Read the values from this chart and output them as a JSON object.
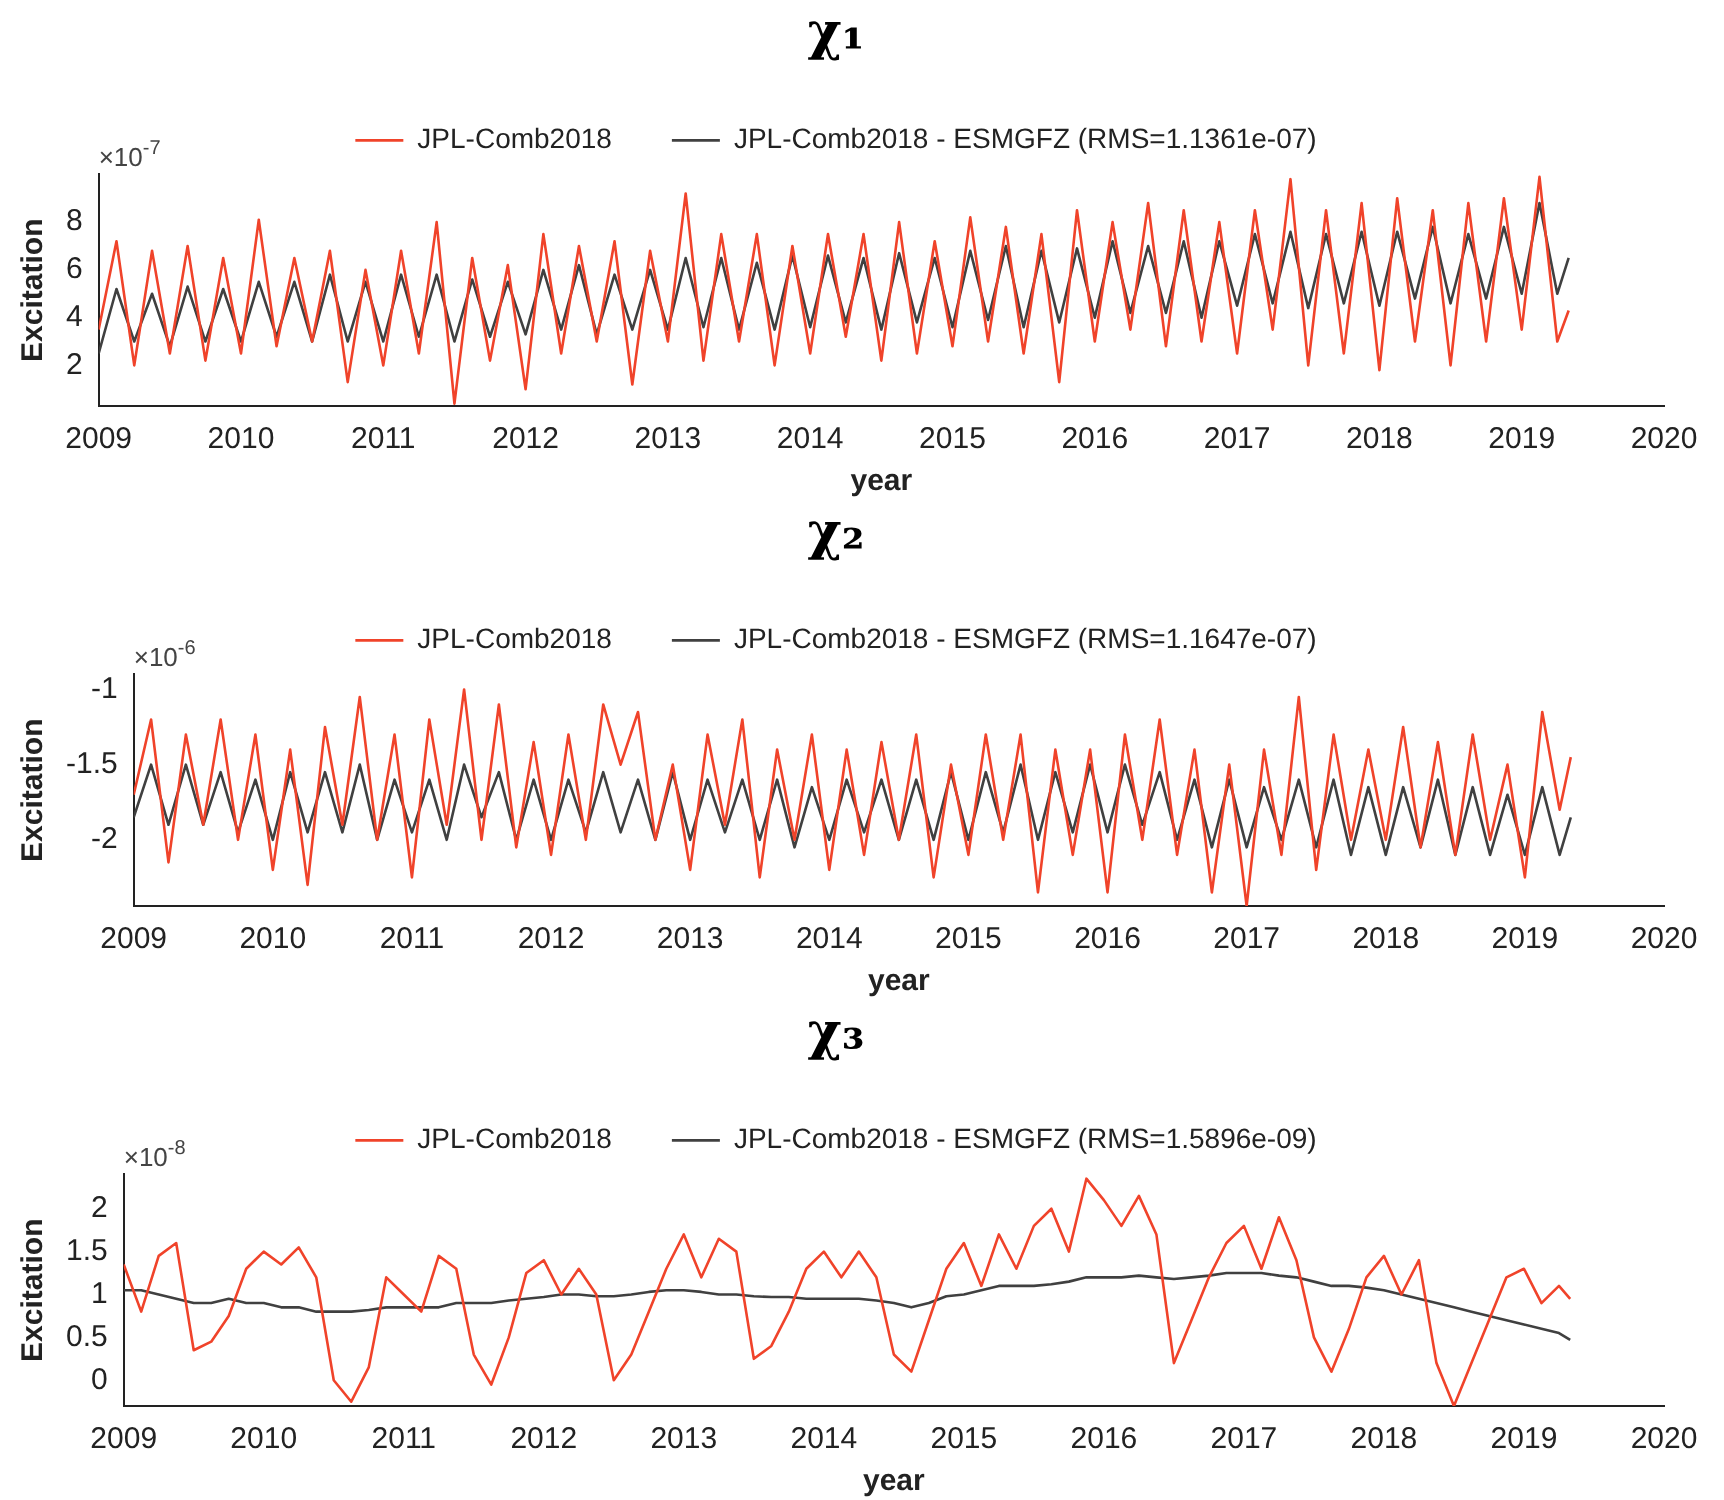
{
  "chart_data": [
    {
      "type": "line",
      "title": "χ₁",
      "xlabel": "year",
      "ylabel": "Excitation",
      "annotations": [
        "×10$^{-7}$"
      ],
      "legend": "top",
      "xlim": [
        2009,
        2020
      ],
      "xticks": [
        2009,
        2010,
        2011,
        2012,
        2013,
        2014,
        2015,
        2016,
        2017,
        2018,
        2019,
        2020
      ],
      "ylim": [
        0.3,
        10
      ],
      "yticks": [
        2,
        4,
        6,
        8
      ],
      "x": [
        2009,
        2009.125,
        2009.25,
        2009.375,
        2009.5,
        2009.625,
        2009.75,
        2009.875,
        2010,
        2010.125,
        2010.25,
        2010.375,
        2010.5,
        2010.625,
        2010.75,
        2010.875,
        2011,
        2011.125,
        2011.25,
        2011.375,
        2011.5,
        2011.625,
        2011.75,
        2011.875,
        2012,
        2012.125,
        2012.25,
        2012.375,
        2012.5,
        2012.625,
        2012.75,
        2012.875,
        2013,
        2013.125,
        2013.25,
        2013.375,
        2013.5,
        2013.625,
        2013.75,
        2013.875,
        2014,
        2014.125,
        2014.25,
        2014.375,
        2014.5,
        2014.625,
        2014.75,
        2014.875,
        2015,
        2015.125,
        2015.25,
        2015.375,
        2015.5,
        2015.625,
        2015.75,
        2015.875,
        2016,
        2016.125,
        2016.25,
        2016.375,
        2016.5,
        2016.625,
        2016.75,
        2016.875,
        2017,
        2017.125,
        2017.25,
        2017.375,
        2017.5,
        2017.625,
        2017.75,
        2017.875,
        2018,
        2018.125,
        2018.25,
        2018.375,
        2018.5,
        2018.625,
        2018.75,
        2018.875,
        2019,
        2019.125,
        2019.25,
        2019.33
      ],
      "series": [
        {
          "name": "JPL-Comb2018",
          "color": "#f0432a",
          "values": [
            3.5,
            7.2,
            2.0,
            6.8,
            2.5,
            7.0,
            2.2,
            6.5,
            2.5,
            8.1,
            2.8,
            6.5,
            3.0,
            6.8,
            1.3,
            6.0,
            2.0,
            6.8,
            2.5,
            8.0,
            0.4,
            6.5,
            2.2,
            6.2,
            1.0,
            7.5,
            2.5,
            7.0,
            3.0,
            7.2,
            1.2,
            6.8,
            3.0,
            9.2,
            2.2,
            7.5,
            3.0,
            7.5,
            2.0,
            7.0,
            2.5,
            7.5,
            3.2,
            7.5,
            2.2,
            8.0,
            2.5,
            7.2,
            2.8,
            8.2,
            3.0,
            7.8,
            2.5,
            7.5,
            1.3,
            8.5,
            3.0,
            8.0,
            3.5,
            8.8,
            2.8,
            8.5,
            3.0,
            8.0,
            2.5,
            8.5,
            3.5,
            9.8,
            2.0,
            8.5,
            2.5,
            8.8,
            1.8,
            9.0,
            3.0,
            8.5,
            2.0,
            8.8,
            3.0,
            9.0,
            3.5,
            9.9,
            3.0,
            4.3
          ]
        },
        {
          "name": "JPL-Comb2018 - ESMGFZ (RMS=1.1361e-07)",
          "color": "#404040",
          "values": [
            2.5,
            5.2,
            3.0,
            5.0,
            2.8,
            5.3,
            3.0,
            5.2,
            3.0,
            5.5,
            3.2,
            5.5,
            3.0,
            5.8,
            3.0,
            5.5,
            3.0,
            5.8,
            3.2,
            5.8,
            3.0,
            5.6,
            3.2,
            5.5,
            3.3,
            6.0,
            3.5,
            6.2,
            3.3,
            5.8,
            3.5,
            6.0,
            3.5,
            6.5,
            3.6,
            6.5,
            3.5,
            6.3,
            3.5,
            6.6,
            3.6,
            6.6,
            3.8,
            6.5,
            3.5,
            6.7,
            3.8,
            6.5,
            3.6,
            6.8,
            3.9,
            7.0,
            3.6,
            6.8,
            3.8,
            6.9,
            4.0,
            7.2,
            4.2,
            7.0,
            4.2,
            7.2,
            4.0,
            7.2,
            4.5,
            7.5,
            4.6,
            7.6,
            4.4,
            7.5,
            4.6,
            7.6,
            4.5,
            7.6,
            4.8,
            7.8,
            4.6,
            7.5,
            4.8,
            7.8,
            5.0,
            8.8,
            5.0,
            6.5
          ]
        }
      ]
    },
    {
      "type": "line",
      "title": "χ₂",
      "xlabel": "year",
      "ylabel": "Excitation",
      "annotations": [
        "×10$^{-6}$"
      ],
      "legend": "top",
      "xlim": [
        2009,
        2020
      ],
      "xticks": [
        2009,
        2010,
        2011,
        2012,
        2013,
        2014,
        2015,
        2016,
        2017,
        2018,
        2019,
        2020
      ],
      "ylim": [
        -2.44,
        -0.9
      ],
      "yticks": [
        -2,
        -1.5,
        -1
      ],
      "x": [
        2009,
        2009.125,
        2009.25,
        2009.375,
        2009.5,
        2009.625,
        2009.75,
        2009.875,
        2010,
        2010.125,
        2010.25,
        2010.375,
        2010.5,
        2010.625,
        2010.75,
        2010.875,
        2011,
        2011.125,
        2011.25,
        2011.375,
        2011.5,
        2011.625,
        2011.75,
        2011.875,
        2012,
        2012.125,
        2012.25,
        2012.375,
        2012.5,
        2012.625,
        2012.75,
        2012.875,
        2013,
        2013.125,
        2013.25,
        2013.375,
        2013.5,
        2013.625,
        2013.75,
        2013.875,
        2014,
        2014.125,
        2014.25,
        2014.375,
        2014.5,
        2014.625,
        2014.75,
        2014.875,
        2015,
        2015.125,
        2015.25,
        2015.375,
        2015.5,
        2015.625,
        2015.75,
        2015.875,
        2016,
        2016.125,
        2016.25,
        2016.375,
        2016.5,
        2016.625,
        2016.75,
        2016.875,
        2017,
        2017.125,
        2017.25,
        2017.375,
        2017.5,
        2017.625,
        2017.75,
        2017.875,
        2018,
        2018.125,
        2018.25,
        2018.375,
        2018.5,
        2018.625,
        2018.75,
        2018.875,
        2019,
        2019.125,
        2019.25,
        2019.33
      ],
      "series": [
        {
          "name": "JPL-Comb2018",
          "color": "#f0432a",
          "values": [
            -1.7,
            -1.2,
            -2.15,
            -1.3,
            -1.9,
            -1.2,
            -2.0,
            -1.3,
            -2.2,
            -1.4,
            -2.3,
            -1.25,
            -1.9,
            -1.05,
            -2.0,
            -1.3,
            -2.25,
            -1.2,
            -1.9,
            -1.0,
            -2.0,
            -1.1,
            -2.05,
            -1.35,
            -2.1,
            -1.3,
            -2.0,
            -1.1,
            -1.5,
            -1.15,
            -2.0,
            -1.5,
            -2.2,
            -1.3,
            -1.9,
            -1.2,
            -2.25,
            -1.4,
            -2.0,
            -1.3,
            -2.2,
            -1.4,
            -2.1,
            -1.35,
            -2.0,
            -1.3,
            -2.25,
            -1.5,
            -2.1,
            -1.3,
            -2.0,
            -1.3,
            -2.35,
            -1.4,
            -2.1,
            -1.4,
            -2.35,
            -1.3,
            -2.0,
            -1.2,
            -2.1,
            -1.4,
            -2.35,
            -1.5,
            -2.44,
            -1.4,
            -2.1,
            -1.05,
            -2.2,
            -1.3,
            -2.0,
            -1.4,
            -2.0,
            -1.25,
            -2.05,
            -1.35,
            -2.1,
            -1.3,
            -2.0,
            -1.5,
            -2.25,
            -1.15,
            -1.8,
            -1.45
          ]
        },
        {
          "name": "JPL-Comb2018 - ESMGFZ (RMS=1.1647e-07)",
          "color": "#404040",
          "values": [
            -1.85,
            -1.5,
            -1.9,
            -1.5,
            -1.9,
            -1.55,
            -1.95,
            -1.6,
            -2.0,
            -1.55,
            -1.95,
            -1.55,
            -1.95,
            -1.5,
            -2.0,
            -1.6,
            -1.95,
            -1.6,
            -2.0,
            -1.5,
            -1.85,
            -1.55,
            -2.0,
            -1.6,
            -2.0,
            -1.6,
            -1.95,
            -1.55,
            -1.95,
            -1.6,
            -2.0,
            -1.55,
            -2.0,
            -1.6,
            -1.95,
            -1.6,
            -2.0,
            -1.6,
            -2.05,
            -1.65,
            -2.0,
            -1.6,
            -1.95,
            -1.6,
            -2.0,
            -1.6,
            -2.0,
            -1.55,
            -2.0,
            -1.55,
            -1.95,
            -1.5,
            -2.0,
            -1.55,
            -1.95,
            -1.5,
            -1.95,
            -1.5,
            -1.9,
            -1.55,
            -2.0,
            -1.6,
            -2.05,
            -1.6,
            -2.05,
            -1.65,
            -2.0,
            -1.6,
            -2.05,
            -1.6,
            -2.1,
            -1.65,
            -2.1,
            -1.65,
            -2.05,
            -1.6,
            -2.1,
            -1.65,
            -2.1,
            -1.7,
            -2.1,
            -1.65,
            -2.1,
            -1.85
          ]
        }
      ]
    },
    {
      "type": "line",
      "title": "χ₃",
      "xlabel": "year",
      "ylabel": "Excitation",
      "annotations": [
        "×10$^{-8}$"
      ],
      "legend": "top",
      "xlim": [
        2009,
        2020
      ],
      "xticks": [
        2009,
        2010,
        2011,
        2012,
        2013,
        2014,
        2015,
        2016,
        2017,
        2018,
        2019,
        2020
      ],
      "ylim": [
        -0.3,
        2.4
      ],
      "yticks": [
        0,
        0.5,
        1,
        1.5,
        2
      ],
      "x": [
        2009,
        2009.125,
        2009.25,
        2009.375,
        2009.5,
        2009.625,
        2009.75,
        2009.875,
        2010,
        2010.125,
        2010.25,
        2010.375,
        2010.5,
        2010.625,
        2010.75,
        2010.875,
        2011,
        2011.125,
        2011.25,
        2011.375,
        2011.5,
        2011.625,
        2011.75,
        2011.875,
        2012,
        2012.125,
        2012.25,
        2012.375,
        2012.5,
        2012.625,
        2012.75,
        2012.875,
        2013,
        2013.125,
        2013.25,
        2013.375,
        2013.5,
        2013.625,
        2013.75,
        2013.875,
        2014,
        2014.125,
        2014.25,
        2014.375,
        2014.5,
        2014.625,
        2014.75,
        2014.875,
        2015,
        2015.125,
        2015.25,
        2015.375,
        2015.5,
        2015.625,
        2015.75,
        2015.875,
        2016,
        2016.125,
        2016.25,
        2016.375,
        2016.5,
        2016.625,
        2016.75,
        2016.875,
        2017,
        2017.125,
        2017.25,
        2017.375,
        2017.5,
        2017.625,
        2017.75,
        2017.875,
        2018,
        2018.125,
        2018.25,
        2018.375,
        2018.5,
        2018.625,
        2018.75,
        2018.875,
        2019,
        2019.125,
        2019.25,
        2019.33
      ],
      "series": [
        {
          "name": "JPL-Comb2018",
          "color": "#f0432a",
          "values": [
            1.35,
            0.8,
            1.45,
            1.6,
            0.35,
            0.45,
            0.75,
            1.3,
            1.5,
            1.35,
            1.55,
            1.2,
            0.0,
            -0.25,
            0.15,
            1.2,
            1.0,
            0.8,
            1.45,
            1.3,
            0.3,
            -0.05,
            0.5,
            1.25,
            1.4,
            1.0,
            1.3,
            1.0,
            0.0,
            0.3,
            0.8,
            1.3,
            1.7,
            1.2,
            1.65,
            1.5,
            0.25,
            0.4,
            0.8,
            1.3,
            1.5,
            1.2,
            1.5,
            1.2,
            0.3,
            0.1,
            0.7,
            1.3,
            1.6,
            1.1,
            1.7,
            1.3,
            1.8,
            2.0,
            1.5,
            2.35,
            2.1,
            1.8,
            2.15,
            1.7,
            0.2,
            0.7,
            1.2,
            1.6,
            1.8,
            1.3,
            1.9,
            1.4,
            0.5,
            0.1,
            0.6,
            1.2,
            1.45,
            1.0,
            1.4,
            0.2,
            -0.3,
            0.2,
            0.7,
            1.2,
            1.3,
            0.9,
            1.1,
            0.95
          ]
        },
        {
          "name": "JPL-Comb2018 - ESMGFZ (RMS=1.5896e-09)",
          "color": "#404040",
          "values": [
            1.05,
            1.05,
            1.0,
            0.95,
            0.9,
            0.9,
            0.95,
            0.9,
            0.9,
            0.85,
            0.85,
            0.8,
            0.8,
            0.8,
            0.82,
            0.85,
            0.85,
            0.85,
            0.85,
            0.9,
            0.9,
            0.9,
            0.93,
            0.95,
            0.97,
            1.0,
            1.0,
            0.98,
            0.98,
            1.0,
            1.03,
            1.05,
            1.05,
            1.03,
            1.0,
            1.0,
            0.98,
            0.97,
            0.97,
            0.95,
            0.95,
            0.95,
            0.95,
            0.93,
            0.9,
            0.85,
            0.9,
            0.98,
            1.0,
            1.05,
            1.1,
            1.1,
            1.1,
            1.12,
            1.15,
            1.2,
            1.2,
            1.2,
            1.22,
            1.2,
            1.18,
            1.2,
            1.22,
            1.25,
            1.25,
            1.25,
            1.22,
            1.2,
            1.15,
            1.1,
            1.1,
            1.08,
            1.05,
            1.0,
            0.95,
            0.9,
            0.85,
            0.8,
            0.75,
            0.7,
            0.65,
            0.6,
            0.55,
            0.47
          ]
        }
      ]
    }
  ]
}
